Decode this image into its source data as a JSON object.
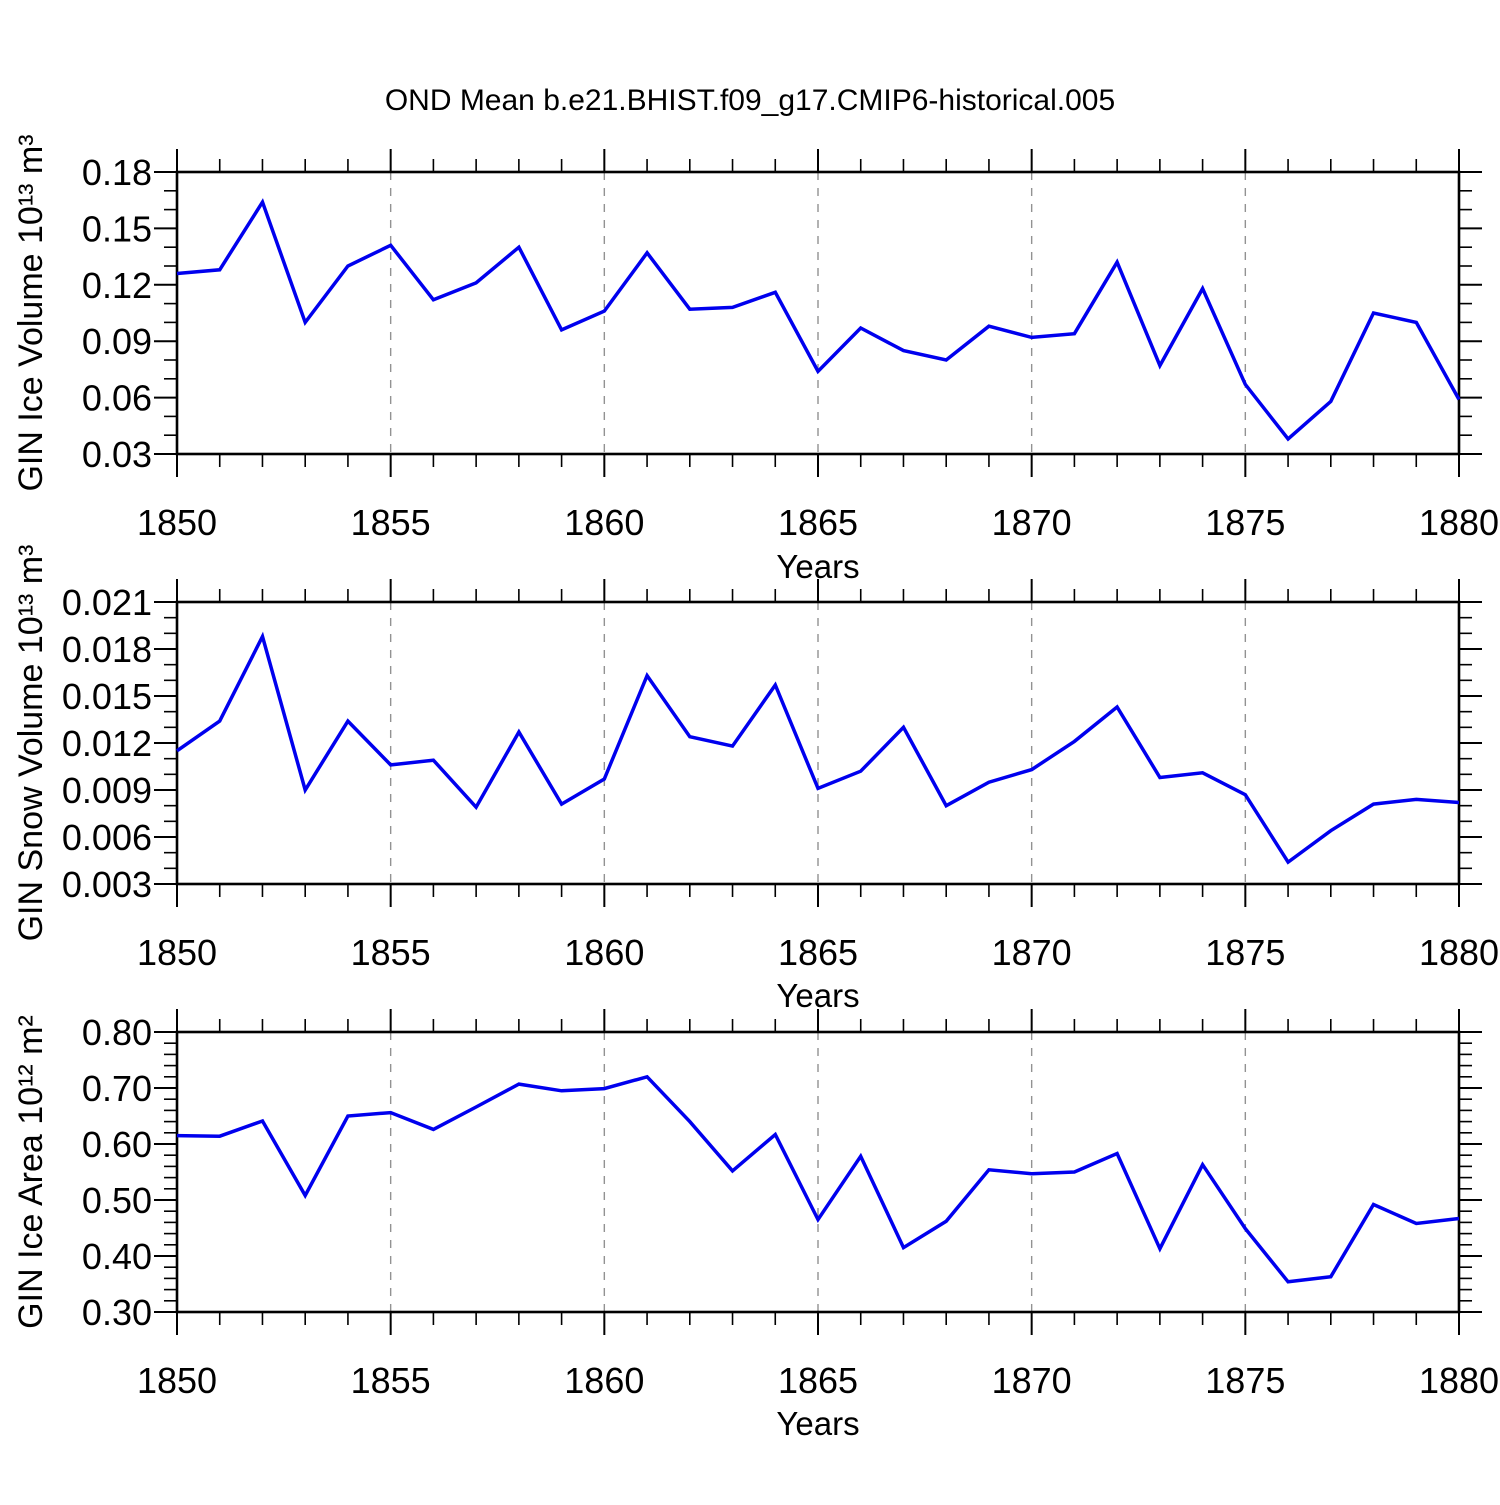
{
  "title": "OND Mean b.e21.BHIST.f09_g17.CMIP6-historical.005",
  "x_axis_label": "Years",
  "line_color": "#0000EE",
  "grid_color": "#929292",
  "frame_color": "#000000",
  "years": [
    1850,
    1851,
    1852,
    1853,
    1854,
    1855,
    1856,
    1857,
    1858,
    1859,
    1860,
    1861,
    1862,
    1863,
    1864,
    1865,
    1866,
    1867,
    1868,
    1869,
    1870,
    1871,
    1872,
    1873,
    1874,
    1875,
    1876,
    1877,
    1878,
    1879,
    1880
  ],
  "chart_data": [
    {
      "type": "line",
      "name": "GIN Ice Volume",
      "ylabel": "GIN Ice Volume 10¹³ m³",
      "xlabel": "Years",
      "legend": "none",
      "grid": "vertical-dashed",
      "xlim": [
        1850,
        1880
      ],
      "xticks": [
        1850,
        1855,
        1860,
        1865,
        1870,
        1875,
        1880
      ],
      "xtick_labels": [
        "1850",
        "1855",
        "1860",
        "1865",
        "1870",
        "1875",
        "1880"
      ],
      "x_minor_step": 1,
      "grid_x": [
        1855,
        1860,
        1865,
        1870,
        1875
      ],
      "ylim": [
        0.03,
        0.18
      ],
      "yticks": [
        0.18,
        0.15,
        0.12,
        0.09,
        0.06,
        0.03
      ],
      "ytick_labels": [
        "0.18",
        "0.15",
        "0.12",
        "0.09",
        "0.06",
        "0.03"
      ],
      "y_minor_step": 0.01,
      "values": [
        0.126,
        0.128,
        0.164,
        0.1,
        0.13,
        0.141,
        0.112,
        0.121,
        0.14,
        0.096,
        0.106,
        0.137,
        0.107,
        0.108,
        0.116,
        0.074,
        0.097,
        0.085,
        0.08,
        0.098,
        0.092,
        0.094,
        0.132,
        0.077,
        0.118,
        0.067,
        0.038,
        0.058,
        0.105,
        0.1,
        0.059
      ]
    },
    {
      "type": "line",
      "name": "GIN Snow Volume",
      "ylabel": "GIN Snow Volume 10¹³ m³",
      "xlabel": "Years",
      "legend": "none",
      "grid": "vertical-dashed",
      "xlim": [
        1850,
        1880
      ],
      "xticks": [
        1850,
        1855,
        1860,
        1865,
        1870,
        1875,
        1880
      ],
      "xtick_labels": [
        "1850",
        "1855",
        "1860",
        "1865",
        "1870",
        "1875",
        "1880"
      ],
      "x_minor_step": 1,
      "grid_x": [
        1855,
        1860,
        1865,
        1870,
        1875
      ],
      "ylim": [
        0.003,
        0.021
      ],
      "yticks": [
        0.021,
        0.018,
        0.015,
        0.012,
        0.009,
        0.006,
        0.003
      ],
      "ytick_labels": [
        "0.021",
        "0.018",
        "0.015",
        "0.012",
        "0.009",
        "0.006",
        "0.003"
      ],
      "y_minor_step": 0.001,
      "values": [
        0.0115,
        0.0134,
        0.0188,
        0.009,
        0.0134,
        0.0106,
        0.0109,
        0.0079,
        0.0127,
        0.0081,
        0.0097,
        0.0163,
        0.0124,
        0.0118,
        0.0157,
        0.0091,
        0.0102,
        0.013,
        0.008,
        0.0095,
        0.0103,
        0.0121,
        0.0143,
        0.0098,
        0.0101,
        0.0087,
        0.0044,
        0.0064,
        0.0081,
        0.0084,
        0.0082
      ]
    },
    {
      "type": "line",
      "name": "GIN Ice Area",
      "ylabel": "GIN Ice Area 10¹² m²",
      "xlabel": "Years",
      "legend": "none",
      "grid": "vertical-dashed",
      "xlim": [
        1850,
        1880
      ],
      "xticks": [
        1850,
        1855,
        1860,
        1865,
        1870,
        1875,
        1880
      ],
      "xtick_labels": [
        "1850",
        "1855",
        "1860",
        "1865",
        "1870",
        "1875",
        "1880"
      ],
      "x_minor_step": 1,
      "grid_x": [
        1855,
        1860,
        1865,
        1870,
        1875
      ],
      "ylim": [
        0.3,
        0.8
      ],
      "yticks": [
        0.8,
        0.7,
        0.6,
        0.5,
        0.4,
        0.3
      ],
      "ytick_labels": [
        "0.80",
        "0.70",
        "0.60",
        "0.50",
        "0.40",
        "0.30"
      ],
      "y_minor_step": 0.02,
      "values": [
        0.615,
        0.614,
        0.641,
        0.508,
        0.65,
        0.656,
        0.626,
        0.666,
        0.707,
        0.695,
        0.699,
        0.72,
        0.64,
        0.552,
        0.617,
        0.465,
        0.578,
        0.415,
        0.462,
        0.554,
        0.547,
        0.55,
        0.583,
        0.413,
        0.563,
        0.449,
        0.354,
        0.363,
        0.492,
        0.458,
        0.467
      ]
    }
  ]
}
